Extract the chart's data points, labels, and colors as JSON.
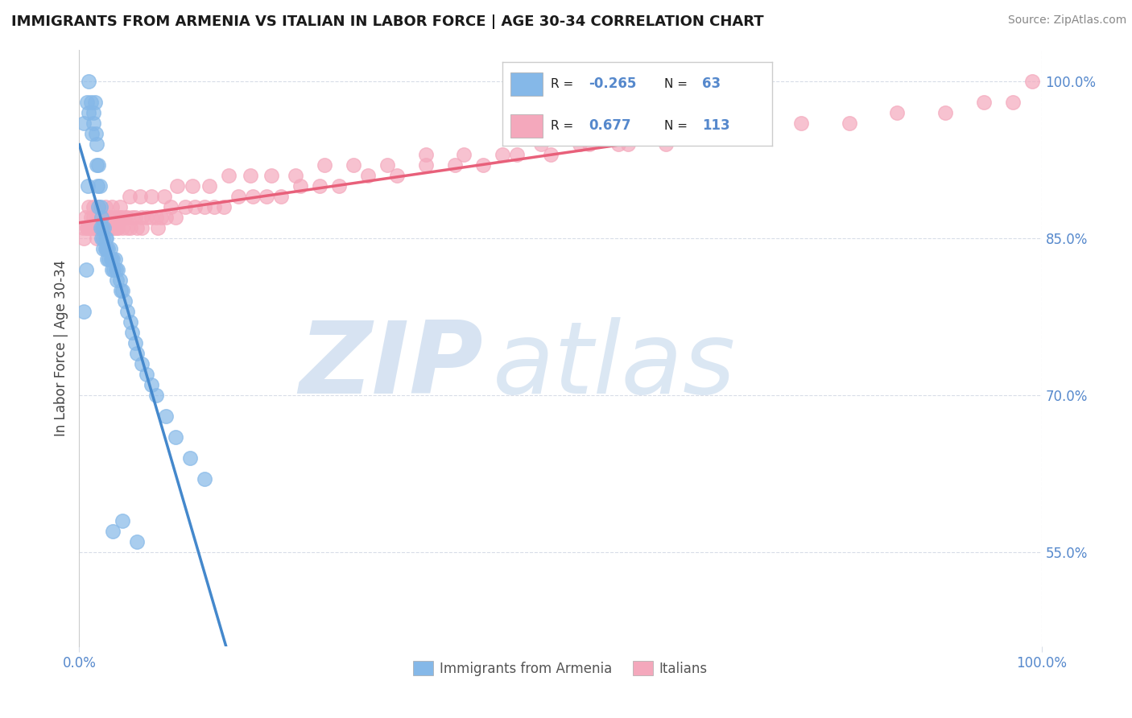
{
  "title": "IMMIGRANTS FROM ARMENIA VS ITALIAN IN LABOR FORCE | AGE 30-34 CORRELATION CHART",
  "source": "Source: ZipAtlas.com",
  "ylabel": "In Labor Force | Age 30-34",
  "xlim": [
    0.0,
    1.0
  ],
  "ylim": [
    0.46,
    1.03
  ],
  "r_armenia": "-0.265",
  "n_armenia": "63",
  "r_italian": "0.677",
  "n_italian": "113",
  "armenia_color": "#85b8e8",
  "italian_color": "#f4a8bc",
  "trend_armenia_color": "#4488cc",
  "trend_italian_color": "#e8607a",
  "background_color": "#ffffff",
  "grid_color": "#d8dde8",
  "tick_color": "#5588cc",
  "ytick_positions": [
    0.55,
    0.7,
    0.85,
    1.0
  ],
  "ytick_labels": [
    "55.0%",
    "70.0%",
    "85.0%",
    "100.0%"
  ],
  "watermark_color": "#d0dff0",
  "scatter_armenia_x": [
    0.005,
    0.008,
    0.01,
    0.01,
    0.012,
    0.013,
    0.015,
    0.015,
    0.016,
    0.017,
    0.018,
    0.018,
    0.019,
    0.02,
    0.02,
    0.021,
    0.022,
    0.022,
    0.023,
    0.023,
    0.024,
    0.025,
    0.025,
    0.026,
    0.027,
    0.027,
    0.028,
    0.028,
    0.029,
    0.03,
    0.031,
    0.032,
    0.033,
    0.034,
    0.035,
    0.036,
    0.037,
    0.038,
    0.039,
    0.04,
    0.042,
    0.043,
    0.045,
    0.047,
    0.05,
    0.053,
    0.055,
    0.058,
    0.06,
    0.065,
    0.07,
    0.075,
    0.08,
    0.09,
    0.1,
    0.115,
    0.13,
    0.005,
    0.007,
    0.009,
    0.035,
    0.045,
    0.06
  ],
  "scatter_armenia_y": [
    0.96,
    0.98,
    1.0,
    0.97,
    0.98,
    0.95,
    0.97,
    0.96,
    0.98,
    0.95,
    0.92,
    0.94,
    0.9,
    0.92,
    0.88,
    0.9,
    0.88,
    0.86,
    0.87,
    0.85,
    0.86,
    0.85,
    0.84,
    0.86,
    0.85,
    0.84,
    0.85,
    0.84,
    0.83,
    0.84,
    0.83,
    0.84,
    0.83,
    0.82,
    0.83,
    0.82,
    0.83,
    0.82,
    0.81,
    0.82,
    0.81,
    0.8,
    0.8,
    0.79,
    0.78,
    0.77,
    0.76,
    0.75,
    0.74,
    0.73,
    0.72,
    0.71,
    0.7,
    0.68,
    0.66,
    0.64,
    0.62,
    0.78,
    0.82,
    0.9,
    0.57,
    0.58,
    0.56
  ],
  "scatter_italian_x": [
    0.004,
    0.006,
    0.008,
    0.01,
    0.012,
    0.013,
    0.015,
    0.016,
    0.017,
    0.018,
    0.019,
    0.02,
    0.021,
    0.022,
    0.023,
    0.024,
    0.025,
    0.026,
    0.027,
    0.028,
    0.029,
    0.03,
    0.032,
    0.033,
    0.034,
    0.035,
    0.037,
    0.038,
    0.04,
    0.042,
    0.043,
    0.045,
    0.047,
    0.05,
    0.053,
    0.055,
    0.058,
    0.06,
    0.065,
    0.07,
    0.075,
    0.08,
    0.085,
    0.09,
    0.095,
    0.1,
    0.11,
    0.12,
    0.13,
    0.14,
    0.15,
    0.165,
    0.18,
    0.195,
    0.21,
    0.23,
    0.25,
    0.27,
    0.3,
    0.33,
    0.36,
    0.39,
    0.42,
    0.455,
    0.49,
    0.53,
    0.57,
    0.61,
    0.65,
    0.7,
    0.75,
    0.8,
    0.85,
    0.9,
    0.94,
    0.97,
    0.99,
    0.005,
    0.008,
    0.012,
    0.018,
    0.025,
    0.032,
    0.04,
    0.05,
    0.065,
    0.082,
    0.01,
    0.015,
    0.02,
    0.027,
    0.034,
    0.042,
    0.052,
    0.063,
    0.075,
    0.088,
    0.102,
    0.118,
    0.135,
    0.155,
    0.178,
    0.2,
    0.225,
    0.255,
    0.285,
    0.32,
    0.36,
    0.4,
    0.44,
    0.48,
    0.52,
    0.56
  ],
  "scatter_italian_y": [
    0.86,
    0.87,
    0.86,
    0.86,
    0.87,
    0.86,
    0.87,
    0.86,
    0.86,
    0.87,
    0.86,
    0.87,
    0.86,
    0.86,
    0.87,
    0.86,
    0.87,
    0.86,
    0.86,
    0.87,
    0.86,
    0.86,
    0.87,
    0.86,
    0.87,
    0.86,
    0.86,
    0.87,
    0.86,
    0.87,
    0.87,
    0.86,
    0.87,
    0.87,
    0.86,
    0.87,
    0.87,
    0.86,
    0.87,
    0.87,
    0.87,
    0.87,
    0.87,
    0.87,
    0.88,
    0.87,
    0.88,
    0.88,
    0.88,
    0.88,
    0.88,
    0.89,
    0.89,
    0.89,
    0.89,
    0.9,
    0.9,
    0.9,
    0.91,
    0.91,
    0.92,
    0.92,
    0.92,
    0.93,
    0.93,
    0.94,
    0.94,
    0.94,
    0.95,
    0.95,
    0.96,
    0.96,
    0.97,
    0.97,
    0.98,
    0.98,
    1.0,
    0.85,
    0.86,
    0.86,
    0.85,
    0.86,
    0.86,
    0.86,
    0.86,
    0.86,
    0.86,
    0.88,
    0.88,
    0.88,
    0.88,
    0.88,
    0.88,
    0.89,
    0.89,
    0.89,
    0.89,
    0.9,
    0.9,
    0.9,
    0.91,
    0.91,
    0.91,
    0.91,
    0.92,
    0.92,
    0.92,
    0.93,
    0.93,
    0.93,
    0.94,
    0.94,
    0.94
  ]
}
